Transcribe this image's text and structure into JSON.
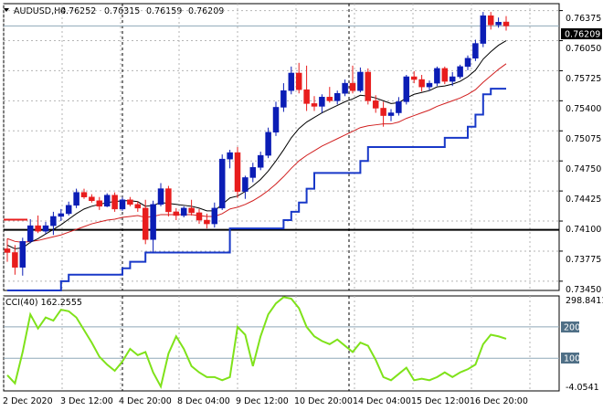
{
  "header": {
    "symbol": "AUDUSD,H4",
    "open": "0.76252",
    "high": "0.76315",
    "low": "0.76159",
    "close": "0.76209"
  },
  "price_panel": {
    "current_price_label": "0.76209",
    "y_ticks": [
      "0.73450",
      "0.73775",
      "0.74100",
      "0.74425",
      "0.74750",
      "0.75075",
      "0.75400",
      "0.75725",
      "0.76050",
      "0.76375"
    ]
  },
  "cci_panel": {
    "title": "CCI(40) 162.2555",
    "y_labels": [
      "298.8411",
      "200",
      "100",
      "-4.0541"
    ]
  },
  "x_axis": {
    "labels": [
      "2 Dec 2020",
      "3 Dec 12:00",
      "4 Dec 20:00",
      "8 Dec 04:00",
      "9 Dec 12:00",
      "10 Dec 20:00",
      "14 Dec 04:00",
      "15 Dec 12:00",
      "16 Dec 20:00"
    ]
  },
  "colors": {
    "bull_candle": "#0b1db5",
    "bear_candle": "#e81d1d",
    "ma_fast": "#000000",
    "ma_slow": "#d11f1f",
    "channel": "#1838c8",
    "cci_line": "#7fe21a",
    "horizontal_level": "#000000",
    "grid": "#b5b5b5",
    "ref_line": "#8fa8b8"
  },
  "chart_data": [
    {
      "type": "candlestick",
      "title": "AUDUSD,H4",
      "ylim": [
        0.7335,
        0.7645
      ],
      "horizontal_level": 0.74005,
      "current_price": 0.76209,
      "ohlc": [
        [
          0.738,
          0.7391,
          0.7366,
          0.7376
        ],
        [
          0.7376,
          0.7384,
          0.7352,
          0.736
        ],
        [
          0.736,
          0.7392,
          0.7351,
          0.7388
        ],
        [
          0.7388,
          0.7412,
          0.7386,
          0.7405
        ],
        [
          0.7405,
          0.7416,
          0.7397,
          0.7399
        ],
        [
          0.7399,
          0.7409,
          0.7396,
          0.7405
        ],
        [
          0.7405,
          0.742,
          0.7395,
          0.7415
        ],
        [
          0.7415,
          0.7423,
          0.741,
          0.7418
        ],
        [
          0.7418,
          0.7431,
          0.7416,
          0.7427
        ],
        [
          0.7427,
          0.7445,
          0.7424,
          0.7441
        ],
        [
          0.7441,
          0.7445,
          0.7434,
          0.7436
        ],
        [
          0.7436,
          0.7439,
          0.743,
          0.7432
        ],
        [
          0.7432,
          0.7436,
          0.7422,
          0.7426
        ],
        [
          0.7426,
          0.744,
          0.7425,
          0.7438
        ],
        [
          0.7438,
          0.7441,
          0.742,
          0.7423
        ],
        [
          0.7423,
          0.7436,
          0.7421,
          0.7433
        ],
        [
          0.7433,
          0.7436,
          0.7426,
          0.7428
        ],
        [
          0.7428,
          0.7431,
          0.742,
          0.7424
        ],
        [
          0.7424,
          0.7433,
          0.7385,
          0.739
        ],
        [
          0.739,
          0.7432,
          0.7376,
          0.7428
        ],
        [
          0.7428,
          0.7451,
          0.7426,
          0.7445
        ],
        [
          0.7445,
          0.7448,
          0.7415,
          0.742
        ],
        [
          0.742,
          0.7424,
          0.7411,
          0.7416
        ],
        [
          0.7416,
          0.7426,
          0.7414,
          0.7424
        ],
        [
          0.7424,
          0.7433,
          0.7416,
          0.7419
        ],
        [
          0.7419,
          0.7423,
          0.7407,
          0.7411
        ],
        [
          0.7411,
          0.7418,
          0.7402,
          0.7407
        ],
        [
          0.7407,
          0.743,
          0.7403,
          0.7424
        ],
        [
          0.7424,
          0.7482,
          0.7422,
          0.7477
        ],
        [
          0.7477,
          0.7487,
          0.7467,
          0.7484
        ],
        [
          0.7484,
          0.749,
          0.7435,
          0.7442
        ],
        [
          0.7442,
          0.7459,
          0.7434,
          0.7457
        ],
        [
          0.7457,
          0.7473,
          0.7452,
          0.7468
        ],
        [
          0.7468,
          0.7485,
          0.7465,
          0.7481
        ],
        [
          0.7481,
          0.7511,
          0.7478,
          0.7506
        ],
        [
          0.7506,
          0.7539,
          0.7502,
          0.7533
        ],
        [
          0.7533,
          0.7559,
          0.7528,
          0.7551
        ],
        [
          0.7551,
          0.7577,
          0.7547,
          0.757
        ],
        [
          0.757,
          0.7581,
          0.7548,
          0.7552
        ],
        [
          0.7552,
          0.7578,
          0.7529,
          0.7537
        ],
        [
          0.7537,
          0.7545,
          0.7529,
          0.7534
        ],
        [
          0.7534,
          0.7547,
          0.7527,
          0.7544
        ],
        [
          0.7544,
          0.7555,
          0.7538,
          0.754
        ],
        [
          0.754,
          0.7551,
          0.7536,
          0.7548
        ],
        [
          0.7548,
          0.7563,
          0.7545,
          0.7559
        ],
        [
          0.7559,
          0.7578,
          0.7548,
          0.7551
        ],
        [
          0.7551,
          0.7576,
          0.7549,
          0.7571
        ],
        [
          0.7571,
          0.7575,
          0.7536,
          0.754
        ],
        [
          0.754,
          0.7546,
          0.7527,
          0.7532
        ],
        [
          0.7532,
          0.7539,
          0.7512,
          0.7524
        ],
        [
          0.7524,
          0.7531,
          0.7518,
          0.7527
        ],
        [
          0.7527,
          0.7544,
          0.7524,
          0.7539
        ],
        [
          0.7539,
          0.7568,
          0.7536,
          0.7566
        ],
        [
          0.7566,
          0.7572,
          0.7559,
          0.7563
        ],
        [
          0.7563,
          0.7568,
          0.755,
          0.7555
        ],
        [
          0.7555,
          0.7562,
          0.7551,
          0.7559
        ],
        [
          0.7559,
          0.7577,
          0.7556,
          0.7575
        ],
        [
          0.7575,
          0.7577,
          0.7558,
          0.7561
        ],
        [
          0.7561,
          0.7571,
          0.7556,
          0.7566
        ],
        [
          0.7566,
          0.7579,
          0.7564,
          0.7577
        ],
        [
          0.7577,
          0.7589,
          0.7573,
          0.7586
        ],
        [
          0.7586,
          0.7606,
          0.7583,
          0.7602
        ],
        [
          0.7602,
          0.7636,
          0.7598,
          0.7632
        ],
        [
          0.7632,
          0.7636,
          0.7617,
          0.7622
        ],
        [
          0.7622,
          0.763,
          0.7619,
          0.7625
        ],
        [
          0.76252,
          0.76315,
          0.76159,
          0.76209
        ]
      ],
      "ma_fast": [
        0.7384,
        0.738,
        0.7381,
        0.7387,
        0.7391,
        0.7396,
        0.7401,
        0.7406,
        0.7412,
        0.7418,
        0.7423,
        0.7426,
        0.7428,
        0.743,
        0.7431,
        0.7432,
        0.7432,
        0.7431,
        0.7426,
        0.7427,
        0.743,
        0.7429,
        0.7428,
        0.7427,
        0.7426,
        0.7424,
        0.7421,
        0.7421,
        0.7428,
        0.7435,
        0.7437,
        0.7442,
        0.7448,
        0.7455,
        0.7464,
        0.7475,
        0.7487,
        0.75,
        0.751,
        0.7517,
        0.7522,
        0.7527,
        0.7531,
        0.7535,
        0.7539,
        0.7542,
        0.7546,
        0.7545,
        0.7543,
        0.754,
        0.7537,
        0.7538,
        0.7543,
        0.7547,
        0.7549,
        0.7551,
        0.7555,
        0.7556,
        0.7558,
        0.7561,
        0.7566,
        0.7573,
        0.7585,
        0.7593,
        0.76,
        0.7605
      ],
      "ma_slow": [
        0.7391,
        0.7388,
        0.7387,
        0.7388,
        0.7389,
        0.7391,
        0.7393,
        0.7395,
        0.7398,
        0.7401,
        0.7404,
        0.7407,
        0.7409,
        0.7411,
        0.7412,
        0.7414,
        0.7415,
        0.7416,
        0.7414,
        0.7415,
        0.7417,
        0.7417,
        0.7417,
        0.7417,
        0.7417,
        0.7416,
        0.7415,
        0.7415,
        0.7418,
        0.7423,
        0.7425,
        0.7428,
        0.7432,
        0.7437,
        0.7443,
        0.745,
        0.7458,
        0.7467,
        0.7475,
        0.7481,
        0.7486,
        0.7491,
        0.7495,
        0.7499,
        0.7503,
        0.7507,
        0.7511,
        0.7513,
        0.7514,
        0.7515,
        0.7515,
        0.7517,
        0.7521,
        0.7524,
        0.7527,
        0.753,
        0.7534,
        0.7537,
        0.754,
        0.7543,
        0.7547,
        0.7552,
        0.756,
        0.7567,
        0.7574,
        0.758
      ],
      "channel_lower": [
        0.7335,
        0.7335,
        0.7335,
        0.7335,
        0.7335,
        0.7335,
        0.7335,
        0.7345,
        0.7352,
        0.7352,
        0.7352,
        0.7352,
        0.7352,
        0.7352,
        0.7352,
        0.7359,
        0.7366,
        0.7366,
        0.7376,
        0.7376,
        0.7376,
        0.7376,
        0.7376,
        0.7376,
        0.7376,
        0.7376,
        0.7376,
        0.7376,
        0.7376,
        0.7402,
        0.7402,
        0.7402,
        0.7402,
        0.7402,
        0.7402,
        0.7402,
        0.7411,
        0.742,
        0.743,
        0.7445,
        0.7462,
        0.7462,
        0.7462,
        0.7462,
        0.7462,
        0.7462,
        0.7475,
        0.749,
        0.749,
        0.749,
        0.749,
        0.749,
        0.749,
        0.749,
        0.749,
        0.749,
        0.749,
        0.75,
        0.75,
        0.75,
        0.7512,
        0.7525,
        0.7547,
        0.7553,
        0.7553,
        0.7553
      ]
    },
    {
      "type": "line",
      "title": "CCI(40) 162.2555",
      "ylim": [
        -4.0541,
        298.8411
      ],
      "reference_lines": [
        100,
        200
      ],
      "series": [
        {
          "name": "CCI(40)",
          "values": [
            46,
            20,
            120,
            240,
            195,
            230,
            220,
            255,
            250,
            230,
            190,
            150,
            105,
            80,
            60,
            90,
            130,
            110,
            120,
            55,
            10,
            115,
            170,
            130,
            75,
            55,
            40,
            40,
            30,
            40,
            200,
            175,
            75,
            170,
            240,
            275,
            295,
            290,
            260,
            200,
            170,
            155,
            145,
            160,
            140,
            120,
            150,
            140,
            95,
            40,
            30,
            50,
            70,
            30,
            35,
            30,
            40,
            55,
            40,
            55,
            65,
            80,
            145,
            175,
            170,
            162
          ]
        }
      ]
    }
  ]
}
